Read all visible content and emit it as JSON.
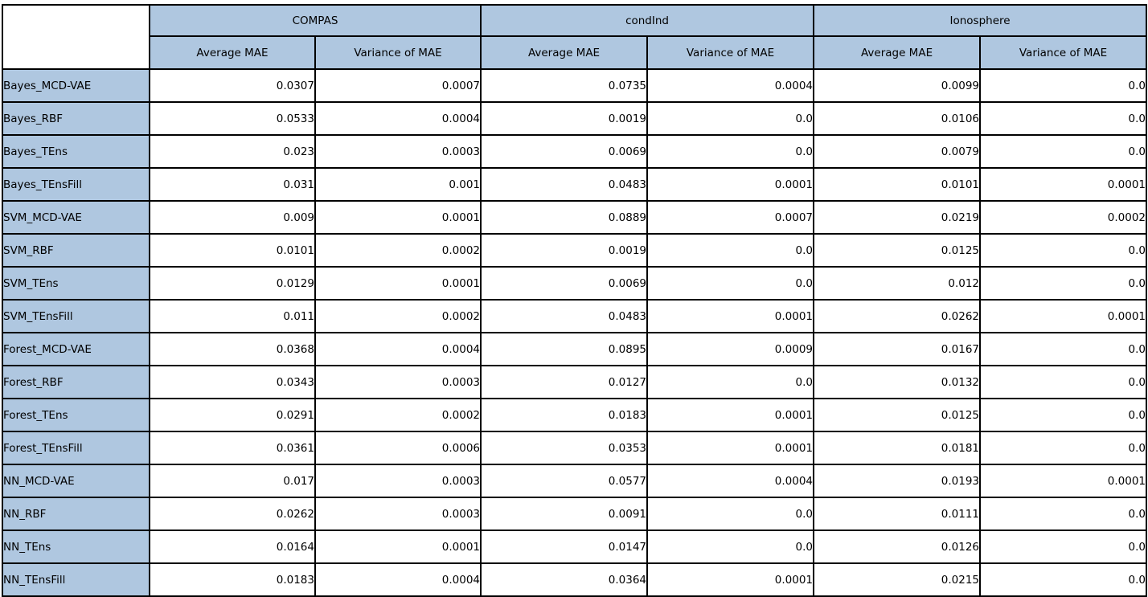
{
  "colors": {
    "header_bg": "#afc7e0",
    "border": "#000000",
    "cell_bg": "#ffffff"
  },
  "table": {
    "corner_label": "",
    "groups": [
      {
        "label": "COMPAS"
      },
      {
        "label": "condInd"
      },
      {
        "label": "Ionosphere"
      }
    ],
    "sub_headers": [
      "Average MAE",
      "Variance of MAE"
    ],
    "rows": [
      {
        "label": "Bayes_MCD-VAE",
        "values": [
          "0.0307",
          "0.0007",
          "0.0735",
          "0.0004",
          "0.0099",
          "0.0"
        ]
      },
      {
        "label": "Bayes_RBF",
        "values": [
          "0.0533",
          "0.0004",
          "0.0019",
          "0.0",
          "0.0106",
          "0.0"
        ]
      },
      {
        "label": "Bayes_TEns",
        "values": [
          "0.023",
          "0.0003",
          "0.0069",
          "0.0",
          "0.0079",
          "0.0"
        ]
      },
      {
        "label": "Bayes_TEnsFill",
        "values": [
          "0.031",
          "0.001",
          "0.0483",
          "0.0001",
          "0.0101",
          "0.0001"
        ]
      },
      {
        "label": "SVM_MCD-VAE",
        "values": [
          "0.009",
          "0.0001",
          "0.0889",
          "0.0007",
          "0.0219",
          "0.0002"
        ]
      },
      {
        "label": "SVM_RBF",
        "values": [
          "0.0101",
          "0.0002",
          "0.0019",
          "0.0",
          "0.0125",
          "0.0"
        ]
      },
      {
        "label": "SVM_TEns",
        "values": [
          "0.0129",
          "0.0001",
          "0.0069",
          "0.0",
          "0.012",
          "0.0"
        ]
      },
      {
        "label": "SVM_TEnsFill",
        "values": [
          "0.011",
          "0.0002",
          "0.0483",
          "0.0001",
          "0.0262",
          "0.0001"
        ]
      },
      {
        "label": "Forest_MCD-VAE",
        "values": [
          "0.0368",
          "0.0004",
          "0.0895",
          "0.0009",
          "0.0167",
          "0.0"
        ]
      },
      {
        "label": "Forest_RBF",
        "values": [
          "0.0343",
          "0.0003",
          "0.0127",
          "0.0",
          "0.0132",
          "0.0"
        ]
      },
      {
        "label": "Forest_TEns",
        "values": [
          "0.0291",
          "0.0002",
          "0.0183",
          "0.0001",
          "0.0125",
          "0.0"
        ]
      },
      {
        "label": "Forest_TEnsFill",
        "values": [
          "0.0361",
          "0.0006",
          "0.0353",
          "0.0001",
          "0.0181",
          "0.0"
        ]
      },
      {
        "label": "NN_MCD-VAE",
        "values": [
          "0.017",
          "0.0003",
          "0.0577",
          "0.0004",
          "0.0193",
          "0.0001"
        ]
      },
      {
        "label": "NN_RBF",
        "values": [
          "0.0262",
          "0.0003",
          "0.0091",
          "0.0",
          "0.0111",
          "0.0"
        ]
      },
      {
        "label": "NN_TEns",
        "values": [
          "0.0164",
          "0.0001",
          "0.0147",
          "0.0",
          "0.0126",
          "0.0"
        ]
      },
      {
        "label": "NN_TEnsFill",
        "values": [
          "0.0183",
          "0.0004",
          "0.0364",
          "0.0001",
          "0.0215",
          "0.0"
        ]
      }
    ]
  },
  "chart_data": {
    "type": "table",
    "column_groups": [
      "COMPAS",
      "condInd",
      "Ionosphere"
    ],
    "columns": [
      "",
      "COMPAS Average MAE",
      "COMPAS Variance of MAE",
      "condInd Average MAE",
      "condInd Variance of MAE",
      "Ionosphere Average MAE",
      "Ionosphere Variance of MAE"
    ],
    "rows": [
      [
        "Bayes_MCD-VAE",
        0.0307,
        0.0007,
        0.0735,
        0.0004,
        0.0099,
        0.0
      ],
      [
        "Bayes_RBF",
        0.0533,
        0.0004,
        0.0019,
        0.0,
        0.0106,
        0.0
      ],
      [
        "Bayes_TEns",
        0.023,
        0.0003,
        0.0069,
        0.0,
        0.0079,
        0.0
      ],
      [
        "Bayes_TEnsFill",
        0.031,
        0.001,
        0.0483,
        0.0001,
        0.0101,
        0.0001
      ],
      [
        "SVM_MCD-VAE",
        0.009,
        0.0001,
        0.0889,
        0.0007,
        0.0219,
        0.0002
      ],
      [
        "SVM_RBF",
        0.0101,
        0.0002,
        0.0019,
        0.0,
        0.0125,
        0.0
      ],
      [
        "SVM_TEns",
        0.0129,
        0.0001,
        0.0069,
        0.0,
        0.012,
        0.0
      ],
      [
        "SVM_TEnsFill",
        0.011,
        0.0002,
        0.0483,
        0.0001,
        0.0262,
        0.0001
      ],
      [
        "Forest_MCD-VAE",
        0.0368,
        0.0004,
        0.0895,
        0.0009,
        0.0167,
        0.0
      ],
      [
        "Forest_RBF",
        0.0343,
        0.0003,
        0.0127,
        0.0,
        0.0132,
        0.0
      ],
      [
        "Forest_TEns",
        0.0291,
        0.0002,
        0.0183,
        0.0001,
        0.0125,
        0.0
      ],
      [
        "Forest_TEnsFill",
        0.0361,
        0.0006,
        0.0353,
        0.0001,
        0.0181,
        0.0
      ],
      [
        "NN_MCD-VAE",
        0.017,
        0.0003,
        0.0577,
        0.0004,
        0.0193,
        0.0001
      ],
      [
        "NN_RBF",
        0.0262,
        0.0003,
        0.0091,
        0.0,
        0.0111,
        0.0
      ],
      [
        "NN_TEns",
        0.0164,
        0.0001,
        0.0147,
        0.0,
        0.0126,
        0.0
      ],
      [
        "NN_TEnsFill",
        0.0183,
        0.0004,
        0.0364,
        0.0001,
        0.0215,
        0.0
      ]
    ]
  }
}
